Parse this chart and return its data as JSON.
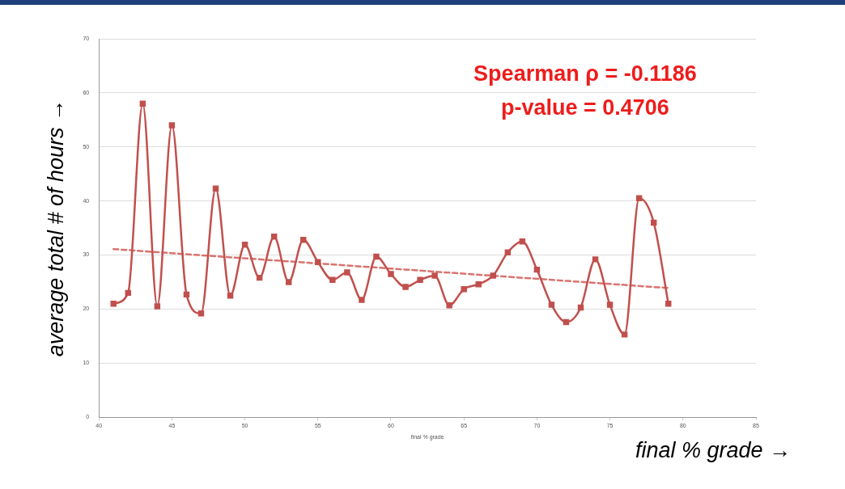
{
  "chart_data": {
    "type": "line",
    "xlabel": "final % grade",
    "ylabel": "average total # of hours →",
    "annotations": [
      "Spearman ρ = -0.1186",
      "p-value = 0.4706",
      "final % grade →"
    ],
    "xlim": [
      40,
      85
    ],
    "xticks": [
      40,
      45,
      50,
      55,
      60,
      65,
      70,
      75,
      80,
      85
    ],
    "ylim": [
      0,
      70
    ],
    "yticks": [
      0,
      10,
      20,
      30,
      40,
      50,
      60,
      70
    ],
    "grid": "y",
    "legend": false,
    "series": [
      {
        "type": "line",
        "color": "#c0504d",
        "marker": "square",
        "line_style": "solid",
        "x": [
          41,
          42,
          43,
          44,
          45,
          46,
          47,
          48,
          49,
          50,
          51,
          52,
          53,
          54,
          55,
          56,
          57,
          58,
          59,
          60,
          61,
          62,
          63,
          64,
          65,
          66,
          67,
          68,
          69,
          70,
          71,
          72,
          73,
          74,
          75,
          76,
          77,
          78,
          79
        ],
        "values": [
          21,
          23,
          58,
          20.5,
          54,
          22.7,
          19.2,
          42.3,
          22.5,
          31.9,
          25.8,
          33.4,
          25,
          32.8,
          28.7,
          25.4,
          26.8,
          21.7,
          29.7,
          26.5,
          24.1,
          25.4,
          26.2,
          20.7,
          23.7,
          24.6,
          26.2,
          30.5,
          32.5,
          27.3,
          20.8,
          17.6,
          20.3,
          29.2,
          20.8,
          15.3,
          40.5,
          36,
          21
        ]
      },
      {
        "type": "line",
        "color": "#d9736f",
        "marker": "none",
        "line_style": "dashed",
        "x": [
          41,
          79
        ],
        "values": [
          31.1,
          23.9
        ]
      }
    ]
  }
}
